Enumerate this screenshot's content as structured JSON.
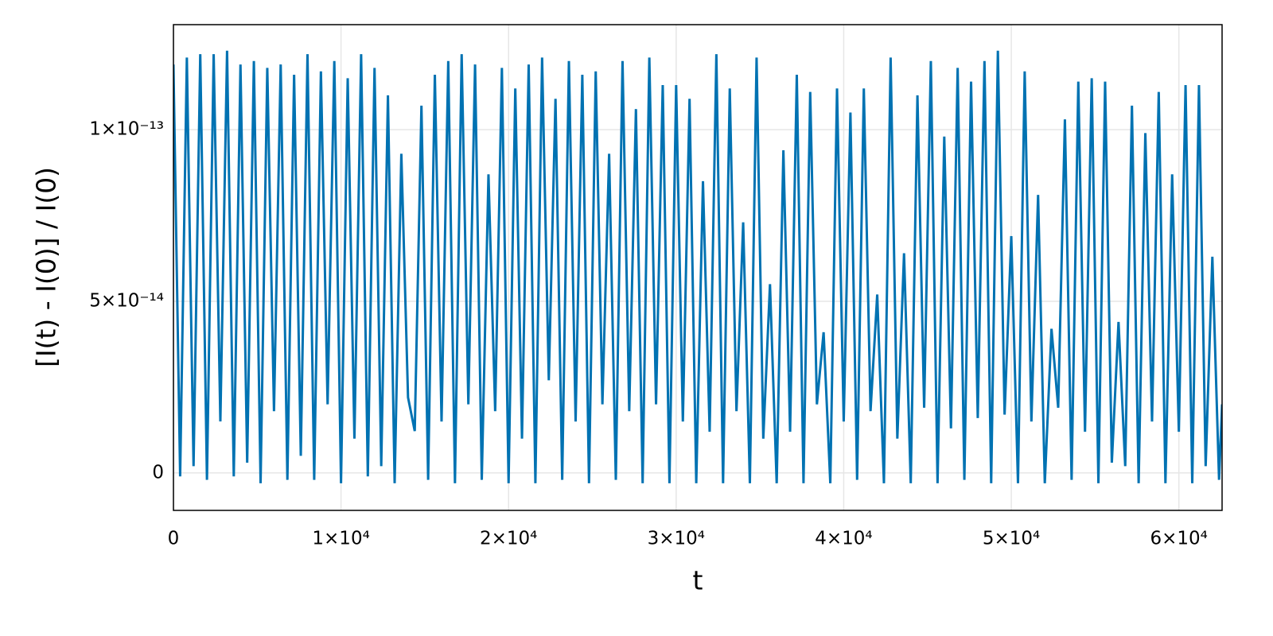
{
  "chart_data": {
    "type": "line",
    "xlabel": "t",
    "ylabel": "[I(t) - I(0)] / I(0)",
    "color": "#0072b2",
    "grid": true,
    "xlim": [
      0,
      62580
    ],
    "ylim": [
      -1.09e-14,
      1.306e-13
    ],
    "xticks": [
      0,
      {
        "value": 10000,
        "label": "1×10⁴"
      },
      {
        "value": 20000,
        "label": "2×10⁴"
      },
      {
        "value": 30000,
        "label": "3×10⁴"
      },
      {
        "value": 40000,
        "label": "4×10⁴"
      },
      {
        "value": 50000,
        "label": "5×10⁴"
      },
      {
        "value": 60000,
        "label": "6×10⁴"
      }
    ],
    "yticks": [
      0,
      {
        "value": 5e-14,
        "label": "5×10⁻¹⁴"
      },
      {
        "value": 1e-13,
        "label": "1×10⁻¹³"
      }
    ],
    "x": [
      0,
      400,
      800,
      1200,
      1600,
      2000,
      2400,
      2800,
      3200,
      3600,
      4000,
      4400,
      4800,
      5200,
      5600,
      6000,
      6400,
      6800,
      7200,
      7600,
      8000,
      8400,
      8800,
      9200,
      9600,
      10000,
      10400,
      10800,
      11200,
      11600,
      12000,
      12400,
      12800,
      13200,
      13600,
      14000,
      14400,
      14800,
      15200,
      15600,
      16000,
      16400,
      16800,
      17200,
      17600,
      18000,
      18400,
      18800,
      19200,
      19600,
      20000,
      20400,
      20800,
      21200,
      21600,
      22000,
      22400,
      22800,
      23200,
      23600,
      24000,
      24400,
      24800,
      25200,
      25600,
      26000,
      26400,
      26800,
      27200,
      27600,
      28000,
      28400,
      28800,
      29200,
      29600,
      30000,
      30400,
      30800,
      31200,
      31600,
      32000,
      32400,
      32800,
      33200,
      33600,
      34000,
      34400,
      34800,
      35200,
      35600,
      36000,
      36400,
      36800,
      37200,
      37600,
      38000,
      38400,
      38800,
      39200,
      39600,
      40000,
      40400,
      40800,
      41200,
      41600,
      42000,
      42400,
      42800,
      43200,
      43600,
      44000,
      44400,
      44800,
      45200,
      45600,
      46000,
      46400,
      46800,
      47200,
      47600,
      48000,
      48400,
      48800,
      49200,
      49600,
      50000,
      50400,
      50800,
      51200,
      51600,
      52000,
      52400,
      52800,
      53200,
      53600,
      54000,
      54400,
      54800,
      55200,
      55600,
      56000,
      56400,
      56800,
      57200,
      57600,
      58000,
      58400,
      58800,
      59200,
      59600,
      60000,
      60400,
      60800,
      61200,
      61600,
      62000,
      62400,
      62580
    ],
    "values": [
      1.19e-13,
      -1e-15,
      1.21e-13,
      2e-15,
      1.22e-13,
      -2e-15,
      1.22e-13,
      1.5e-14,
      1.23e-13,
      -1e-15,
      1.19e-13,
      3e-15,
      1.2e-13,
      -3e-15,
      1.18e-13,
      1.8e-14,
      1.19e-13,
      -2e-15,
      1.16e-13,
      5e-15,
      1.22e-13,
      -2e-15,
      1.17e-13,
      2e-14,
      1.2e-13,
      -3e-15,
      1.15e-13,
      1e-14,
      1.22e-13,
      -1e-15,
      1.18e-13,
      2e-15,
      1.1e-13,
      -3e-15,
      9.3e-14,
      2.2e-14,
      1.22e-14,
      1.07e-13,
      -2e-15,
      1.16e-13,
      1.5e-14,
      1.2e-13,
      -3e-15,
      1.22e-13,
      2e-14,
      1.19e-13,
      -2e-15,
      8.7e-14,
      1.8e-14,
      1.18e-13,
      -3e-15,
      1.12e-13,
      1e-14,
      1.19e-13,
      -3e-15,
      1.21e-13,
      2.7e-14,
      1.09e-13,
      -2e-15,
      1.2e-13,
      1.5e-14,
      1.16e-13,
      -3e-15,
      1.17e-13,
      2e-14,
      9.3e-14,
      -2e-15,
      1.2e-13,
      1.8e-14,
      1.06e-13,
      -3e-15,
      1.21e-13,
      2e-14,
      1.13e-13,
      -3e-15,
      1.13e-13,
      1.5e-14,
      1.09e-13,
      -3e-15,
      8.5e-14,
      1.2e-14,
      1.22e-13,
      -3e-15,
      1.12e-13,
      1.8e-14,
      7.3e-14,
      -3e-15,
      1.21e-13,
      1e-14,
      5.5e-14,
      -3e-15,
      9.4e-14,
      1.2e-14,
      1.16e-13,
      -3e-15,
      1.11e-13,
      2e-14,
      4.1e-14,
      -3e-15,
      1.12e-13,
      1.5e-14,
      1.05e-13,
      -2e-15,
      1.12e-13,
      1.8e-14,
      5.2e-14,
      -3e-15,
      1.21e-13,
      1e-14,
      6.4e-14,
      -3e-15,
      1.1e-13,
      1.9e-14,
      1.2e-13,
      -3e-15,
      9.8e-14,
      1.3e-14,
      1.18e-13,
      -2e-15,
      1.14e-13,
      1.6e-14,
      1.2e-13,
      -3e-15,
      1.23e-13,
      1.7e-14,
      6.9e-14,
      -3e-15,
      1.17e-13,
      1.5e-14,
      8.1e-14,
      -3e-15,
      4.2e-14,
      1.9e-14,
      1.03e-13,
      -2e-15,
      1.14e-13,
      1.2e-14,
      1.15e-13,
      -3e-15,
      1.14e-13,
      3e-15,
      4.4e-14,
      2e-15,
      1.07e-13,
      -3e-15,
      9.9e-14,
      1.5e-14,
      1.11e-13,
      -3e-15,
      8.7e-14,
      1.2e-14,
      1.13e-13,
      -3e-15,
      1.13e-13,
      2e-15,
      6.3e-14,
      -2e-15,
      2e-14
    ]
  }
}
